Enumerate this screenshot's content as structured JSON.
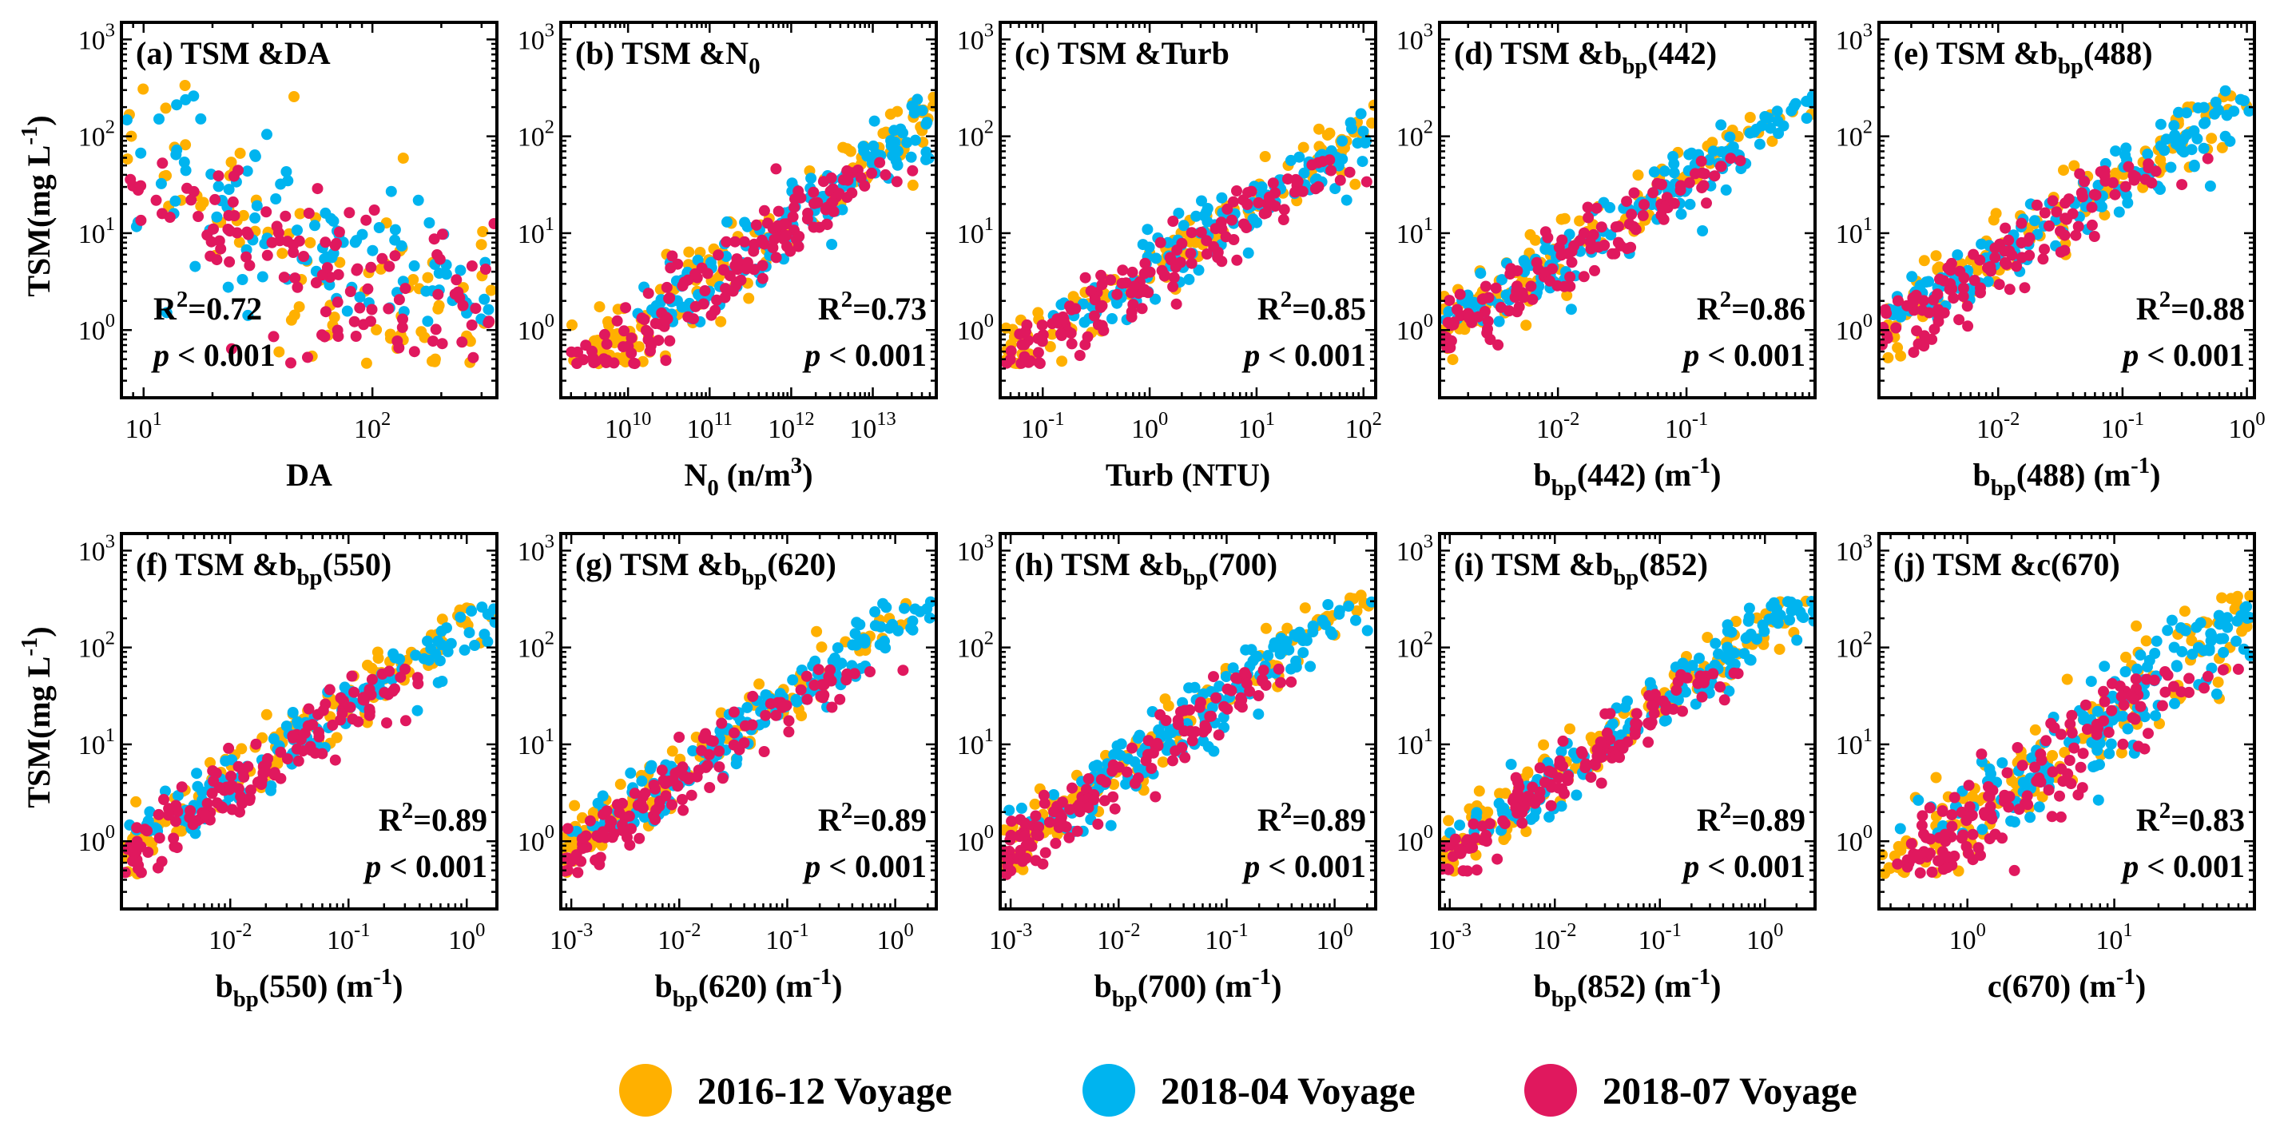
{
  "figure": {
    "legend": [
      {
        "label": "2016-12 Voyage",
        "color": "#ffb000"
      },
      {
        "label": "2018-04 Voyage",
        "color": "#00b4ef"
      },
      {
        "label": "2018-07 Voyage",
        "color": "#e0185e"
      }
    ]
  },
  "chart_data": [
    {
      "type": "scatter",
      "id": "a",
      "title": "(a) TSM &DA",
      "title_parts": [
        [
          "(a) TSM &DA",
          "n"
        ]
      ],
      "xlabel_parts": [
        [
          "DA",
          "n"
        ]
      ],
      "ylabel": "TSM(mg L-1)",
      "xscale": "log",
      "yscale": "log",
      "xlim": [
        8,
        350
      ],
      "ylim": [
        0.2,
        1500
      ],
      "xticks": [
        10,
        100
      ],
      "xticklabels": [
        [
          "10",
          "1"
        ],
        [
          "10",
          "2"
        ]
      ],
      "yticks": [
        1,
        10,
        100,
        1000
      ],
      "yticklabels": [
        [
          "10",
          "0"
        ],
        [
          "10",
          "1"
        ],
        [
          "10",
          "2"
        ],
        [
          "10",
          "3"
        ]
      ],
      "stats_pos": "left",
      "r2_value": "=0.72",
      "p_text": "< 0.001",
      "relation": {
        "slope": -1.25,
        "intercept": 3.0,
        "noise": 0.42
      }
    },
    {
      "type": "scatter",
      "id": "b",
      "title": "(b) TSM &N0",
      "title_parts": [
        [
          "(b) TSM &N",
          "n"
        ],
        [
          "0",
          "sub"
        ]
      ],
      "xlabel_parts": [
        [
          "N",
          "n"
        ],
        [
          "0",
          "sub"
        ],
        [
          " (n/m",
          "n"
        ],
        [
          "3",
          "sup"
        ],
        [
          ")",
          "n"
        ]
      ],
      "ylabel": "",
      "xscale": "log",
      "yscale": "log",
      "xlim": [
        1500000000.0,
        60000000000000.0
      ],
      "ylim": [
        0.2,
        1500
      ],
      "xticks": [
        10000000000.0,
        100000000000.0,
        1000000000000.0,
        10000000000000.0
      ],
      "xticklabels": [
        [
          "10",
          "10"
        ],
        [
          "10",
          "11"
        ],
        [
          "10",
          "12"
        ],
        [
          "10",
          "13"
        ]
      ],
      "yticks": [
        1,
        10,
        100,
        1000
      ],
      "yticklabels": [
        [
          "10",
          "0"
        ],
        [
          "10",
          "1"
        ],
        [
          "10",
          "2"
        ],
        [
          "10",
          "3"
        ]
      ],
      "stats_pos": "right",
      "r2_value": "=0.73",
      "p_text": "< 0.001",
      "relation": {
        "slope": 0.62,
        "intercept": -6.3,
        "noise": 0.33
      }
    },
    {
      "type": "scatter",
      "id": "c",
      "title": "(c) TSM &Turb",
      "title_parts": [
        [
          "(c) TSM &Turb",
          "n"
        ]
      ],
      "xlabel_parts": [
        [
          "Turb (NTU)",
          "n"
        ]
      ],
      "ylabel": "",
      "xscale": "log",
      "yscale": "log",
      "xlim": [
        0.04,
        130
      ],
      "ylim": [
        0.2,
        1500
      ],
      "xticks": [
        0.1,
        1,
        10,
        100
      ],
      "xticklabels": [
        [
          "10",
          "-1"
        ],
        [
          "10",
          "0"
        ],
        [
          "10",
          "1"
        ],
        [
          "10",
          "2"
        ]
      ],
      "yticks": [
        1,
        10,
        100,
        1000
      ],
      "yticklabels": [
        [
          "10",
          "0"
        ],
        [
          "10",
          "1"
        ],
        [
          "10",
          "2"
        ],
        [
          "10",
          "3"
        ]
      ],
      "stats_pos": "right",
      "r2_value": "=0.85",
      "p_text": "< 0.001",
      "relation": {
        "slope": 0.68,
        "intercept": 0.6,
        "noise": 0.24
      }
    },
    {
      "type": "scatter",
      "id": "d",
      "title": "(d) TSM &bbp(442)",
      "title_parts": [
        [
          "(d) TSM &b",
          "n"
        ],
        [
          "bp",
          "sub"
        ],
        [
          "(442)",
          "n"
        ]
      ],
      "xlabel_parts": [
        [
          "b",
          "n"
        ],
        [
          "bp",
          "sub"
        ],
        [
          "(442) (m",
          "n"
        ],
        [
          "-1",
          "sup"
        ],
        [
          ")",
          "n"
        ]
      ],
      "ylabel": "",
      "xscale": "log",
      "yscale": "log",
      "xlim": [
        0.0012,
        1.0
      ],
      "ylim": [
        0.2,
        1500
      ],
      "xticks": [
        0.01,
        0.1
      ],
      "xticklabels": [
        [
          "10",
          "-2"
        ],
        [
          "10",
          "-1"
        ]
      ],
      "yticks": [
        1,
        10,
        100,
        1000
      ],
      "yticklabels": [
        [
          "10",
          "0"
        ],
        [
          "10",
          "1"
        ],
        [
          "10",
          "2"
        ],
        [
          "10",
          "3"
        ]
      ],
      "stats_pos": "right",
      "r2_value": "=0.86",
      "p_text": "< 0.001",
      "relation": {
        "slope": 0.83,
        "intercept": 2.4,
        "noise": 0.22
      }
    },
    {
      "type": "scatter",
      "id": "e",
      "title": "(e) TSM &bbp(488)",
      "title_parts": [
        [
          "(e) TSM &b",
          "n"
        ],
        [
          "bp",
          "sub"
        ],
        [
          "(488)",
          "n"
        ]
      ],
      "xlabel_parts": [
        [
          "b",
          "n"
        ],
        [
          "bp",
          "sub"
        ],
        [
          "(488) (m",
          "n"
        ],
        [
          "-1",
          "sup"
        ],
        [
          ")",
          "n"
        ]
      ],
      "ylabel": "",
      "xscale": "log",
      "yscale": "log",
      "xlim": [
        0.0011,
        1.15
      ],
      "ylim": [
        0.2,
        1500
      ],
      "xticks": [
        0.01,
        0.1,
        1
      ],
      "xticklabels": [
        [
          "10",
          "-2"
        ],
        [
          "10",
          "-1"
        ],
        [
          "10",
          "0"
        ]
      ],
      "yticks": [
        1,
        10,
        100,
        1000
      ],
      "yticklabels": [
        [
          "10",
          "0"
        ],
        [
          "10",
          "1"
        ],
        [
          "10",
          "2"
        ],
        [
          "10",
          "3"
        ]
      ],
      "stats_pos": "right",
      "r2_value": "=0.88",
      "p_text": "< 0.001",
      "relation": {
        "slope": 0.82,
        "intercept": 2.4,
        "noise": 0.21
      }
    },
    {
      "type": "scatter",
      "id": "f",
      "title": "(f) TSM &bbp(550)",
      "title_parts": [
        [
          "(f) TSM &b",
          "n"
        ],
        [
          "bp",
          "sub"
        ],
        [
          "(550)",
          "n"
        ]
      ],
      "xlabel_parts": [
        [
          "b",
          "n"
        ],
        [
          "bp",
          "sub"
        ],
        [
          "(550) (m",
          "n"
        ],
        [
          "-1",
          "sup"
        ],
        [
          ")",
          "n"
        ]
      ],
      "ylabel": "TSM(mg L-1)",
      "xscale": "log",
      "yscale": "log",
      "xlim": [
        0.0012,
        1.8
      ],
      "ylim": [
        0.2,
        1500
      ],
      "xticks": [
        0.01,
        0.1,
        1
      ],
      "xticklabels": [
        [
          "10",
          "-2"
        ],
        [
          "10",
          "-1"
        ],
        [
          "10",
          "0"
        ]
      ],
      "yticks": [
        1,
        10,
        100,
        1000
      ],
      "yticklabels": [
        [
          "10",
          "0"
        ],
        [
          "10",
          "1"
        ],
        [
          "10",
          "2"
        ],
        [
          "10",
          "3"
        ]
      ],
      "stats_pos": "right",
      "r2_value": "=0.89",
      "p_text": "< 0.001",
      "relation": {
        "slope": 0.8,
        "intercept": 2.2,
        "noise": 0.2
      }
    },
    {
      "type": "scatter",
      "id": "g",
      "title": "(g) TSM &bbp(620)",
      "title_parts": [
        [
          "(g) TSM &b",
          "n"
        ],
        [
          "bp",
          "sub"
        ],
        [
          "(620)",
          "n"
        ]
      ],
      "xlabel_parts": [
        [
          "b",
          "n"
        ],
        [
          "bp",
          "sub"
        ],
        [
          "(620) (m",
          "n"
        ],
        [
          "-1",
          "sup"
        ],
        [
          ")",
          "n"
        ]
      ],
      "ylabel": "",
      "xscale": "log",
      "yscale": "log",
      "xlim": [
        0.0008,
        2.4
      ],
      "ylim": [
        0.2,
        1500
      ],
      "xticks": [
        0.001,
        0.01,
        0.1,
        1
      ],
      "xticklabels": [
        [
          "10",
          "-3"
        ],
        [
          "10",
          "-2"
        ],
        [
          "10",
          "-1"
        ],
        [
          "10",
          "0"
        ]
      ],
      "yticks": [
        1,
        10,
        100,
        1000
      ],
      "yticklabels": [
        [
          "10",
          "0"
        ],
        [
          "10",
          "1"
        ],
        [
          "10",
          "2"
        ],
        [
          "10",
          "3"
        ]
      ],
      "stats_pos": "right",
      "r2_value": "=0.89",
      "p_text": "< 0.001",
      "relation": {
        "slope": 0.78,
        "intercept": 2.25,
        "noise": 0.2
      }
    },
    {
      "type": "scatter",
      "id": "h",
      "title": "(h) TSM &bbp(700)",
      "title_parts": [
        [
          "(h) TSM &b",
          "n"
        ],
        [
          "bp",
          "sub"
        ],
        [
          "(700)",
          "n"
        ]
      ],
      "xlabel_parts": [
        [
          "b",
          "n"
        ],
        [
          "bp",
          "sub"
        ],
        [
          "(700) (m",
          "n"
        ],
        [
          "-1",
          "sup"
        ],
        [
          ")",
          "n"
        ]
      ],
      "ylabel": "",
      "xscale": "log",
      "yscale": "log",
      "xlim": [
        0.0008,
        2.4
      ],
      "ylim": [
        0.2,
        1500
      ],
      "xticks": [
        0.001,
        0.01,
        0.1,
        1
      ],
      "xticklabels": [
        [
          "10",
          "-3"
        ],
        [
          "10",
          "-2"
        ],
        [
          "10",
          "-1"
        ],
        [
          "10",
          "0"
        ]
      ],
      "yticks": [
        1,
        10,
        100,
        1000
      ],
      "yticklabels": [
        [
          "10",
          "0"
        ],
        [
          "10",
          "1"
        ],
        [
          "10",
          "2"
        ],
        [
          "10",
          "3"
        ]
      ],
      "stats_pos": "right",
      "r2_value": "=0.89",
      "p_text": "< 0.001",
      "relation": {
        "slope": 0.8,
        "intercept": 2.3,
        "noise": 0.2
      }
    },
    {
      "type": "scatter",
      "id": "i",
      "title": "(i) TSM &bbp(852)",
      "title_parts": [
        [
          "(i) TSM &b",
          "n"
        ],
        [
          "bp",
          "sub"
        ],
        [
          "(852)",
          "n"
        ]
      ],
      "xlabel_parts": [
        [
          "b",
          "n"
        ],
        [
          "bp",
          "sub"
        ],
        [
          "(852) (m",
          "n"
        ],
        [
          "-1",
          "sup"
        ],
        [
          ")",
          "n"
        ]
      ],
      "ylabel": "",
      "xscale": "log",
      "yscale": "log",
      "xlim": [
        0.0008,
        3.0
      ],
      "ylim": [
        0.2,
        1500
      ],
      "xticks": [
        0.001,
        0.01,
        0.1,
        1
      ],
      "xticklabels": [
        [
          "10",
          "-3"
        ],
        [
          "10",
          "-2"
        ],
        [
          "10",
          "-1"
        ],
        [
          "10",
          "0"
        ]
      ],
      "yticks": [
        1,
        10,
        100,
        1000
      ],
      "yticklabels": [
        [
          "10",
          "0"
        ],
        [
          "10",
          "1"
        ],
        [
          "10",
          "2"
        ],
        [
          "10",
          "3"
        ]
      ],
      "stats_pos": "right",
      "r2_value": "=0.89",
      "p_text": "< 0.001",
      "relation": {
        "slope": 0.78,
        "intercept": 2.2,
        "noise": 0.2
      }
    },
    {
      "type": "scatter",
      "id": "j",
      "title": "(j) TSM &c(670)",
      "title_parts": [
        [
          "(j) TSM &c(670)",
          "n"
        ]
      ],
      "xlabel_parts": [
        [
          "c(670) (m",
          "n"
        ],
        [
          "-1",
          "sup"
        ],
        [
          ")",
          "n"
        ]
      ],
      "ylabel": "",
      "xscale": "log",
      "yscale": "log",
      "xlim": [
        0.25,
        90
      ],
      "ylim": [
        0.2,
        1500
      ],
      "xticks": [
        1,
        10
      ],
      "xticklabels": [
        [
          "10",
          "0"
        ],
        [
          "10",
          "1"
        ]
      ],
      "yticks": [
        1,
        10,
        100,
        1000
      ],
      "yticklabels": [
        [
          "10",
          "0"
        ],
        [
          "10",
          "1"
        ],
        [
          "10",
          "2"
        ],
        [
          "10",
          "3"
        ]
      ],
      "stats_pos": "right",
      "r2_value": "=0.83",
      "p_text": "< 0.001",
      "relation": {
        "slope": 1.12,
        "intercept": 0.2,
        "noise": 0.24
      }
    }
  ]
}
